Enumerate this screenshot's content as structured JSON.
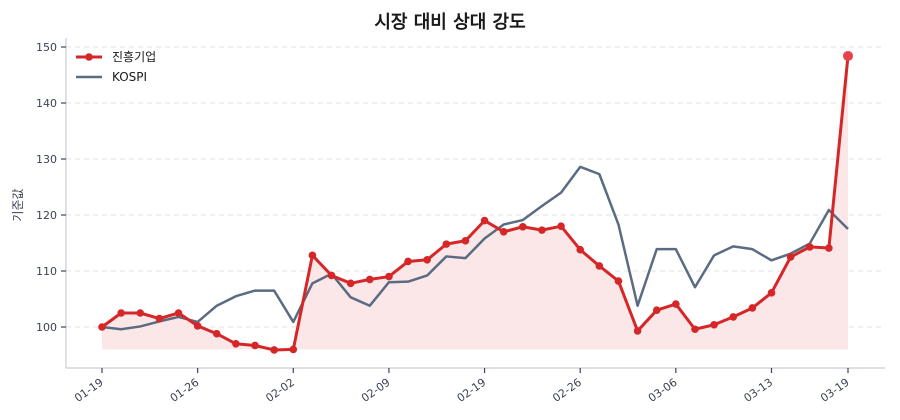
{
  "chart_data": {
    "type": "line",
    "title": "시장 대비 상대 강도",
    "xlabel": "",
    "ylabel": "기준값",
    "ylim": [
      94,
      151
    ],
    "yticks": [
      100,
      110,
      120,
      130,
      140,
      150
    ],
    "xtick_labels": [
      "01-19",
      "01-26",
      "02-02",
      "02-09",
      "02-19",
      "02-26",
      "03-06",
      "03-13",
      "03-19"
    ],
    "xtick_indices": [
      0,
      5,
      10,
      15,
      20,
      25,
      30,
      35,
      39
    ],
    "grid": "horizontal-dashed",
    "legend_position": "upper-left",
    "fill_baseline": 96,
    "series": [
      {
        "name": "진흥기업",
        "color": "#d62728",
        "markers": true,
        "fill": true,
        "values": [
          100.0,
          102.5,
          102.5,
          101.5,
          102.5,
          100.2,
          98.8,
          97.0,
          96.7,
          95.9,
          96.0,
          112.8,
          109.2,
          107.8,
          108.5,
          109.0,
          111.7,
          112.0,
          114.8,
          115.4,
          119.0,
          117.0,
          117.9,
          117.3,
          118.0,
          113.8,
          110.9,
          108.2,
          99.3,
          103.0,
          104.1,
          99.6,
          100.4,
          101.8,
          103.4,
          106.1,
          112.5,
          114.3,
          114.1,
          148.4
        ]
      },
      {
        "name": "KOSPI",
        "color": "#5a6b82",
        "markers": false,
        "fill": false,
        "values": [
          100.0,
          99.6,
          100.1,
          101.0,
          101.8,
          100.9,
          103.8,
          105.5,
          106.5,
          106.5,
          100.9,
          107.8,
          109.5,
          105.3,
          103.8,
          108.0,
          108.1,
          109.2,
          112.6,
          112.3,
          115.8,
          118.3,
          119.1,
          121.6,
          124.0,
          128.6,
          127.3,
          118.3,
          103.8,
          113.9,
          113.9,
          107.1,
          112.8,
          114.4,
          113.9,
          111.9,
          113.1,
          114.9,
          120.9,
          117.5
        ]
      }
    ]
  },
  "colors": {
    "accent_red": "#d62728",
    "kospi_slate": "#5a6b82",
    "fill_pink": "#fbe7e8",
    "grid": "#e3e3e3",
    "axis": "#c8ccd4"
  }
}
